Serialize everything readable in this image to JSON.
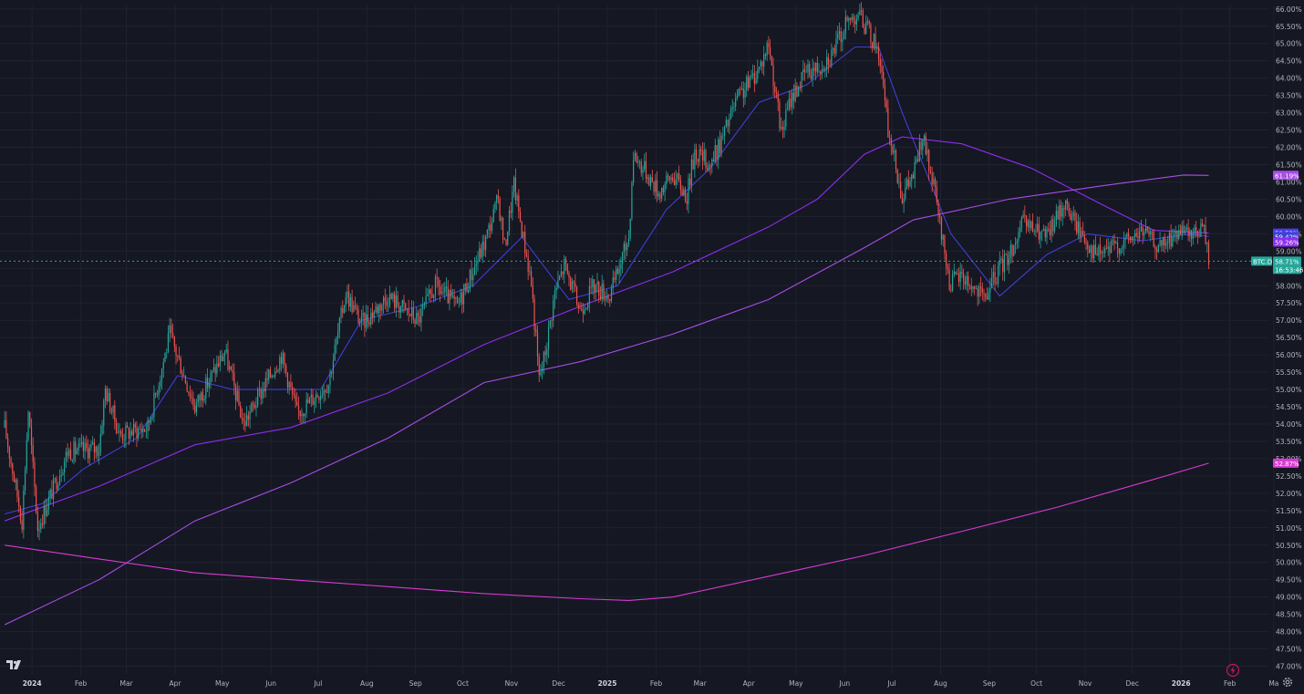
{
  "colors": {
    "background": "#151722",
    "grid": "#1f2230",
    "up": "#26a69a",
    "down": "#ef5350",
    "ma_fast": "#3f3fd6",
    "ma_mid": "#8e2df0",
    "ma_slow": "#a74ee6",
    "ma_long": "#d93ad4",
    "axis_text": "#b2b5be"
  },
  "icons": {
    "logo": "tradingview-logo-icon",
    "settings": "gear-icon",
    "alert": "lightning-icon"
  },
  "chart_data": {
    "type": "candlestick",
    "symbol": "BTC.D",
    "y_unit": "%",
    "ylim": [
      46.75,
      66.1
    ],
    "y_ticks": [
      "66.00%",
      "65.50%",
      "65.00%",
      "64.50%",
      "64.00%",
      "63.50%",
      "63.00%",
      "62.50%",
      "62.00%",
      "61.50%",
      "61.00%",
      "60.50%",
      "60.00%",
      "59.50%",
      "59.00%",
      "58.50%",
      "58.00%",
      "57.50%",
      "57.00%",
      "56.50%",
      "56.00%",
      "55.50%",
      "55.00%",
      "54.50%",
      "54.00%",
      "53.50%",
      "53.00%",
      "52.50%",
      "52.00%",
      "51.50%",
      "51.00%",
      "50.50%",
      "50.00%",
      "49.50%",
      "49.00%",
      "48.50%",
      "48.00%",
      "47.50%",
      "47.00%"
    ],
    "x_labels": [
      "2024",
      "Feb",
      "Mar",
      "Apr",
      "May",
      "Jun",
      "Jul",
      "Aug",
      "Sep",
      "Oct",
      "Nov",
      "Dec",
      "2025",
      "Feb",
      "Mar",
      "Apr",
      "May",
      "Jun",
      "Jul",
      "Aug",
      "Sep",
      "Oct",
      "Nov",
      "Dec",
      "2026",
      "Feb",
      "Ma"
    ],
    "x_label_bold": [
      "2024",
      "2025",
      "2026"
    ],
    "key_points": [
      {
        "date": "2024-01-01",
        "value": 53.9
      },
      {
        "date": "2024-01-12",
        "value": 51.2
      },
      {
        "date": "2024-01-16",
        "value": 54.4
      },
      {
        "date": "2024-01-22",
        "value": 51.0
      },
      {
        "date": "2024-02-10",
        "value": 53.2
      },
      {
        "date": "2024-03-01",
        "value": 53.3
      },
      {
        "date": "2024-03-05",
        "value": 55.0
      },
      {
        "date": "2024-03-14",
        "value": 53.7
      },
      {
        "date": "2024-04-01",
        "value": 53.9
      },
      {
        "date": "2024-04-15",
        "value": 56.6
      },
      {
        "date": "2024-05-01",
        "value": 54.5
      },
      {
        "date": "2024-05-20",
        "value": 56.1
      },
      {
        "date": "2024-06-01",
        "value": 54.0
      },
      {
        "date": "2024-06-25",
        "value": 56.0
      },
      {
        "date": "2024-07-05",
        "value": 54.3
      },
      {
        "date": "2024-07-25",
        "value": 55.2
      },
      {
        "date": "2024-08-05",
        "value": 57.8
      },
      {
        "date": "2024-08-15",
        "value": 56.9
      },
      {
        "date": "2024-09-01",
        "value": 57.7
      },
      {
        "date": "2024-09-20",
        "value": 57.0
      },
      {
        "date": "2024-10-01",
        "value": 58.0
      },
      {
        "date": "2024-10-15",
        "value": 57.4
      },
      {
        "date": "2024-11-01",
        "value": 59.2
      },
      {
        "date": "2024-11-10",
        "value": 60.5
      },
      {
        "date": "2024-11-14",
        "value": 59.1
      },
      {
        "date": "2024-11-20",
        "value": 60.9
      },
      {
        "date": "2024-12-01",
        "value": 58.1
      },
      {
        "date": "2024-12-06",
        "value": 55.3
      },
      {
        "date": "2024-12-10",
        "value": 56.1
      },
      {
        "date": "2024-12-16",
        "value": 57.8
      },
      {
        "date": "2024-12-22",
        "value": 58.6
      },
      {
        "date": "2025-01-01",
        "value": 57.3
      },
      {
        "date": "2025-01-10",
        "value": 58.0
      },
      {
        "date": "2025-01-20",
        "value": 57.7
      },
      {
        "date": "2025-02-01",
        "value": 59.4
      },
      {
        "date": "2025-02-04",
        "value": 61.8
      },
      {
        "date": "2025-02-12",
        "value": 61.3
      },
      {
        "date": "2025-02-20",
        "value": 60.7
      },
      {
        "date": "2025-03-01",
        "value": 61.2
      },
      {
        "date": "2025-03-10",
        "value": 60.6
      },
      {
        "date": "2025-03-15",
        "value": 61.9
      },
      {
        "date": "2025-03-25",
        "value": 61.5
      },
      {
        "date": "2025-04-01",
        "value": 62.2
      },
      {
        "date": "2025-04-10",
        "value": 63.3
      },
      {
        "date": "2025-04-25",
        "value": 64.3
      },
      {
        "date": "2025-05-01",
        "value": 65.0
      },
      {
        "date": "2025-05-09",
        "value": 62.4
      },
      {
        "date": "2025-05-15",
        "value": 63.4
      },
      {
        "date": "2025-05-25",
        "value": 64.2
      },
      {
        "date": "2025-06-01",
        "value": 64.3
      },
      {
        "date": "2025-06-10",
        "value": 64.7
      },
      {
        "date": "2025-06-20",
        "value": 65.6
      },
      {
        "date": "2025-06-27",
        "value": 65.9
      },
      {
        "date": "2025-07-04",
        "value": 65.3
      },
      {
        "date": "2025-07-10",
        "value": 64.8
      },
      {
        "date": "2025-07-16",
        "value": 62.5
      },
      {
        "date": "2025-07-25",
        "value": 60.6
      },
      {
        "date": "2025-08-01",
        "value": 61.2
      },
      {
        "date": "2025-08-07",
        "value": 62.3
      },
      {
        "date": "2025-08-15",
        "value": 60.6
      },
      {
        "date": "2025-08-24",
        "value": 58.1
      },
      {
        "date": "2025-09-01",
        "value": 58.3
      },
      {
        "date": "2025-09-15",
        "value": 57.6
      },
      {
        "date": "2025-09-25",
        "value": 58.5
      },
      {
        "date": "2025-10-01",
        "value": 58.9
      },
      {
        "date": "2025-10-05",
        "value": 59.3
      },
      {
        "date": "2025-10-10",
        "value": 59.8
      },
      {
        "date": "2025-10-25",
        "value": 59.4
      },
      {
        "date": "2025-11-05",
        "value": 60.4
      },
      {
        "date": "2025-11-15",
        "value": 59.6
      },
      {
        "date": "2025-11-25",
        "value": 58.9
      },
      {
        "date": "2025-12-01",
        "value": 59.0
      },
      {
        "date": "2025-12-15",
        "value": 59.3
      },
      {
        "date": "2025-12-25",
        "value": 59.6
      },
      {
        "date": "2026-01-05",
        "value": 59.1
      },
      {
        "date": "2026-01-15",
        "value": 59.5
      },
      {
        "date": "2026-01-25",
        "value": 59.4
      },
      {
        "date": "2026-02-01",
        "value": 59.7
      },
      {
        "date": "2026-02-03",
        "value": 59.4
      },
      {
        "date": "2026-02-05",
        "value": 58.71
      }
    ],
    "series": [
      {
        "id": "ma_fast",
        "color": "#3f3fd6",
        "last_label": "59.42%",
        "points": [
          {
            "date": "2024-01-01",
            "value": 51.4
          },
          {
            "date": "2024-01-25",
            "value": 51.7
          },
          {
            "date": "2024-02-20",
            "value": 52.7
          },
          {
            "date": "2024-03-25",
            "value": 53.6
          },
          {
            "date": "2024-04-20",
            "value": 55.4
          },
          {
            "date": "2024-05-25",
            "value": 55.0
          },
          {
            "date": "2024-06-25",
            "value": 55.0
          },
          {
            "date": "2024-07-20",
            "value": 55.0
          },
          {
            "date": "2024-08-15",
            "value": 57.0
          },
          {
            "date": "2024-09-20",
            "value": 57.4
          },
          {
            "date": "2024-10-25",
            "value": 58.0
          },
          {
            "date": "2024-11-25",
            "value": 59.4
          },
          {
            "date": "2024-12-25",
            "value": 57.6
          },
          {
            "date": "2025-01-25",
            "value": 58.0
          },
          {
            "date": "2025-02-25",
            "value": 60.2
          },
          {
            "date": "2025-03-25",
            "value": 61.4
          },
          {
            "date": "2025-04-25",
            "value": 63.3
          },
          {
            "date": "2025-05-25",
            "value": 63.8
          },
          {
            "date": "2025-06-25",
            "value": 64.9
          },
          {
            "date": "2025-07-10",
            "value": 64.9
          },
          {
            "date": "2025-07-25",
            "value": 63.0
          },
          {
            "date": "2025-08-25",
            "value": 59.5
          },
          {
            "date": "2025-09-25",
            "value": 57.7
          },
          {
            "date": "2025-10-25",
            "value": 58.9
          },
          {
            "date": "2025-11-20",
            "value": 59.5
          },
          {
            "date": "2025-12-25",
            "value": 59.3
          },
          {
            "date": "2026-01-25",
            "value": 59.5
          },
          {
            "date": "2026-02-05",
            "value": 59.42
          }
        ]
      },
      {
        "id": "ma_mid",
        "color": "#8e2df0",
        "last_label": "59.52%",
        "points": [
          {
            "date": "2024-01-01",
            "value": 51.2
          },
          {
            "date": "2024-03-01",
            "value": 52.2
          },
          {
            "date": "2024-05-01",
            "value": 53.4
          },
          {
            "date": "2024-07-01",
            "value": 53.9
          },
          {
            "date": "2024-09-01",
            "value": 54.9
          },
          {
            "date": "2024-11-01",
            "value": 56.3
          },
          {
            "date": "2025-01-01",
            "value": 57.4
          },
          {
            "date": "2025-03-01",
            "value": 58.4
          },
          {
            "date": "2025-05-01",
            "value": 59.7
          },
          {
            "date": "2025-06-01",
            "value": 60.5
          },
          {
            "date": "2025-07-01",
            "value": 61.8
          },
          {
            "date": "2025-07-25",
            "value": 62.3
          },
          {
            "date": "2025-09-01",
            "value": 62.1
          },
          {
            "date": "2025-10-15",
            "value": 61.4
          },
          {
            "date": "2025-12-01",
            "value": 60.3
          },
          {
            "date": "2026-01-01",
            "value": 59.6
          },
          {
            "date": "2026-02-05",
            "value": 59.52
          }
        ]
      },
      {
        "id": "ma_slow",
        "color": "#a74ee6",
        "last_label": "61.19%",
        "points": [
          {
            "date": "2024-01-01",
            "value": 48.2
          },
          {
            "date": "2024-03-01",
            "value": 49.5
          },
          {
            "date": "2024-05-01",
            "value": 51.2
          },
          {
            "date": "2024-07-01",
            "value": 52.3
          },
          {
            "date": "2024-09-01",
            "value": 53.6
          },
          {
            "date": "2024-11-01",
            "value": 55.2
          },
          {
            "date": "2025-01-01",
            "value": 55.8
          },
          {
            "date": "2025-03-01",
            "value": 56.6
          },
          {
            "date": "2025-05-01",
            "value": 57.6
          },
          {
            "date": "2025-07-01",
            "value": 59.1
          },
          {
            "date": "2025-08-01",
            "value": 59.9
          },
          {
            "date": "2025-10-01",
            "value": 60.5
          },
          {
            "date": "2025-12-01",
            "value": 60.9
          },
          {
            "date": "2026-01-20",
            "value": 61.2
          },
          {
            "date": "2026-02-05",
            "value": 61.19
          }
        ]
      },
      {
        "id": "ma_long",
        "color": "#d93ad4",
        "last_label": "52.87%",
        "points": [
          {
            "date": "2024-01-01",
            "value": 50.5
          },
          {
            "date": "2024-03-01",
            "value": 50.1
          },
          {
            "date": "2024-05-01",
            "value": 49.7
          },
          {
            "date": "2024-07-01",
            "value": 49.5
          },
          {
            "date": "2024-09-01",
            "value": 49.3
          },
          {
            "date": "2024-11-01",
            "value": 49.1
          },
          {
            "date": "2025-01-01",
            "value": 48.95
          },
          {
            "date": "2025-02-01",
            "value": 48.9
          },
          {
            "date": "2025-03-01",
            "value": 49.0
          },
          {
            "date": "2025-05-01",
            "value": 49.6
          },
          {
            "date": "2025-07-01",
            "value": 50.2
          },
          {
            "date": "2025-09-01",
            "value": 50.9
          },
          {
            "date": "2025-11-01",
            "value": 51.6
          },
          {
            "date": "2026-01-01",
            "value": 52.4
          },
          {
            "date": "2026-02-05",
            "value": 52.87
          }
        ]
      }
    ],
    "price_labels": [
      {
        "text": "61.19%",
        "value": 61.19,
        "color": "#a74ee6"
      },
      {
        "text": "59.52%",
        "value": 59.52,
        "color": "#4b3cf0"
      },
      {
        "text": "59.42%",
        "value": 59.42,
        "color": "#3f3fd6"
      },
      {
        "text": "59.26%",
        "value": 59.26,
        "color": "#8e2df0"
      },
      {
        "text": "52.87%",
        "value": 52.87,
        "color": "#d93ad4"
      }
    ],
    "last_price": {
      "symbol": "BTC.D",
      "value": 58.71,
      "text": "58.71%",
      "countdown": "16:53:46",
      "color": "#26a69a"
    },
    "grid": true
  }
}
